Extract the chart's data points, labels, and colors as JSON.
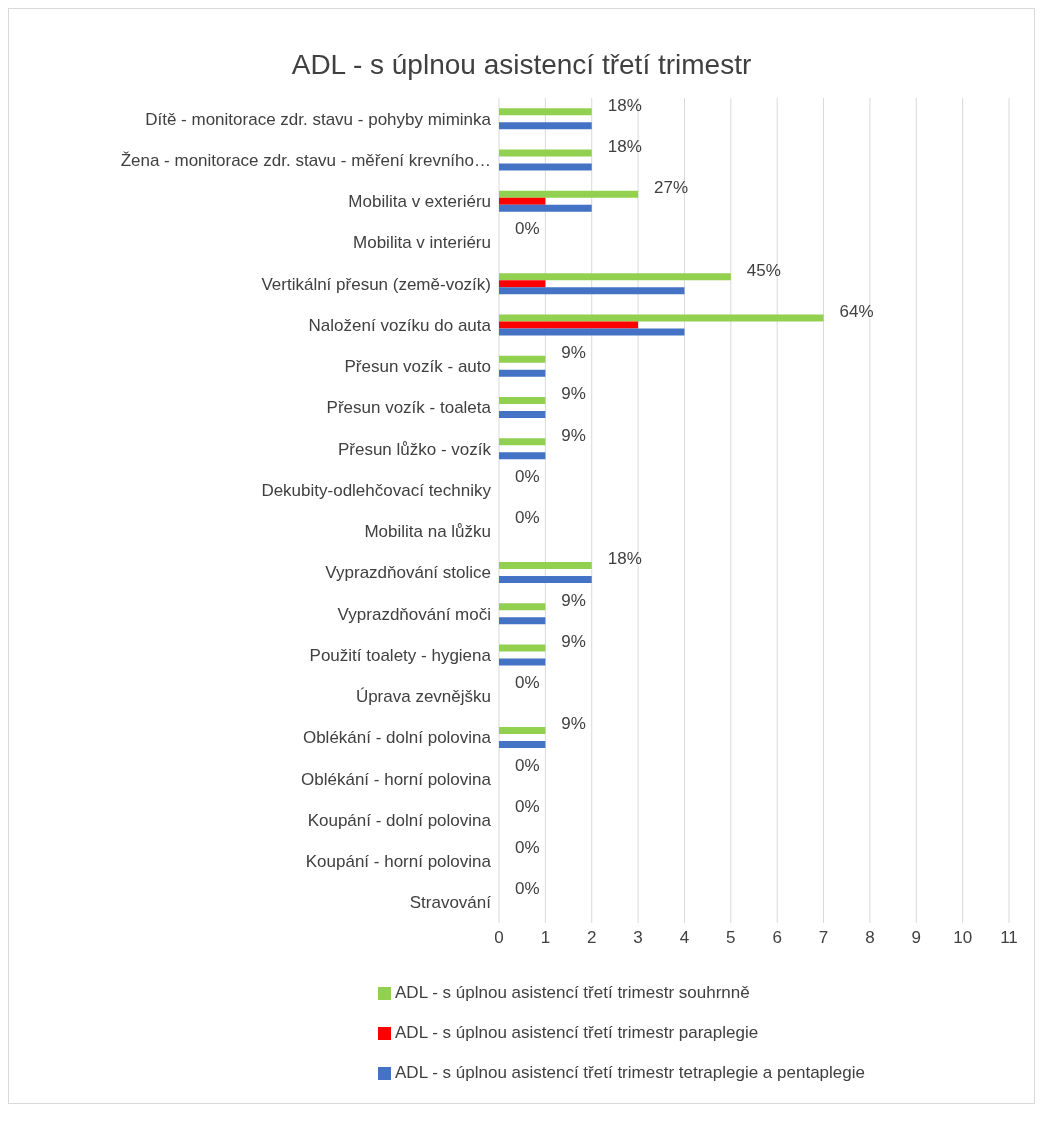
{
  "chart_data": {
    "type": "bar",
    "orientation": "horizontal",
    "title": "ADL - s úplnou asistencí třetí trimestr",
    "categories": [
      "Dítě - monitorace zdr. stavu - pohyby miminka",
      "Žena - monitorace zdr. stavu - měření krevního…",
      "Mobilita v exteriéru",
      "Mobilita v interiéru",
      "Vertikální přesun (země-vozík)",
      "Naložení vozíku do auta",
      "Přesun vozík - auto",
      "Přesun vozík - toaleta",
      "Přesun lůžko - vozík",
      "Dekubity-odlehčovací techniky",
      "Mobilita na lůžku",
      "Vyprazdňování stolice",
      "Vyprazdňování moči",
      "Použití toalety - hygiena",
      "Úprava zevnějšku",
      "Oblékání  - dolní polovina",
      "Oblékání - horní polovina",
      "Koupání - dolní polovina",
      "Koupání - horní polovina",
      "Stravování"
    ],
    "series": [
      {
        "name": "ADL - s úplnou asistencí třetí trimestr  souhrnně",
        "color": "#92d050",
        "values": [
          2,
          2,
          3,
          0,
          5,
          7,
          1,
          1,
          1,
          0,
          0,
          2,
          1,
          1,
          0,
          1,
          0,
          0,
          0,
          0
        ]
      },
      {
        "name": "ADL - s úplnou asistencí třetí trimestr  paraplegie",
        "color": "#ff0000",
        "values": [
          0,
          0,
          1,
          0,
          1,
          3,
          0,
          0,
          0,
          0,
          0,
          0,
          0,
          0,
          0,
          0,
          0,
          0,
          0,
          0
        ]
      },
      {
        "name": "ADL - s úplnou asistencí třetí trimestr  tetraplegie a pentaplegie",
        "color": "#4472c4",
        "values": [
          2,
          2,
          2,
          0,
          4,
          4,
          1,
          1,
          1,
          0,
          0,
          2,
          1,
          1,
          0,
          1,
          0,
          0,
          0,
          0
        ]
      }
    ],
    "annotations": [
      {
        "text": "18%",
        "x": 2,
        "y": "Dítě - monitorace zdr. stavu - pohyby miminka"
      },
      {
        "text": "18%",
        "x": 2,
        "y": "Žena - monitorace zdr. stavu - měření krevního…"
      },
      {
        "text": "27%",
        "x": 3,
        "y": "Mobilita v exteriéru"
      },
      {
        "text": "0%",
        "x": 0,
        "y": "Mobilita v interiéru"
      },
      {
        "text": "45%",
        "x": 5,
        "y": "Vertikální přesun (země-vozík)"
      },
      {
        "text": "64%",
        "x": 7,
        "y": "Naložení vozíku do auta"
      },
      {
        "text": "9%",
        "x": 1,
        "y": "Přesun vozík - auto"
      },
      {
        "text": "9%",
        "x": 1,
        "y": "Přesun vozík - toaleta"
      },
      {
        "text": "9%",
        "x": 1,
        "y": "Přesun lůžko - vozík"
      },
      {
        "text": "0%",
        "x": 0,
        "y": "Dekubity-odlehčovací techniky"
      },
      {
        "text": "0%",
        "x": 0,
        "y": "Mobilita na lůžku"
      },
      {
        "text": "18%",
        "x": 2,
        "y": "Vyprazdňování stolice"
      },
      {
        "text": "9%",
        "x": 1,
        "y": "Vyprazdňování moči"
      },
      {
        "text": "9%",
        "x": 1,
        "y": "Použití toalety - hygiena"
      },
      {
        "text": "0%",
        "x": 0,
        "y": "Úprava zevnějšku"
      },
      {
        "text": "9%",
        "x": 1,
        "y": "Oblékání  - dolní polovina"
      },
      {
        "text": "0%",
        "x": 0,
        "y": "Oblékání - horní polovina"
      },
      {
        "text": "0%",
        "x": 0,
        "y": "Koupání - dolní polovina"
      },
      {
        "text": "0%",
        "x": 0,
        "y": "Koupání - horní polovina"
      },
      {
        "text": "0%",
        "x": 0,
        "y": "Stravování"
      }
    ],
    "xlim": [
      0,
      11
    ],
    "xticks": [
      0,
      1,
      2,
      3,
      4,
      5,
      6,
      7,
      8,
      9,
      10,
      11
    ],
    "grid": "x",
    "legend": "bottom"
  }
}
